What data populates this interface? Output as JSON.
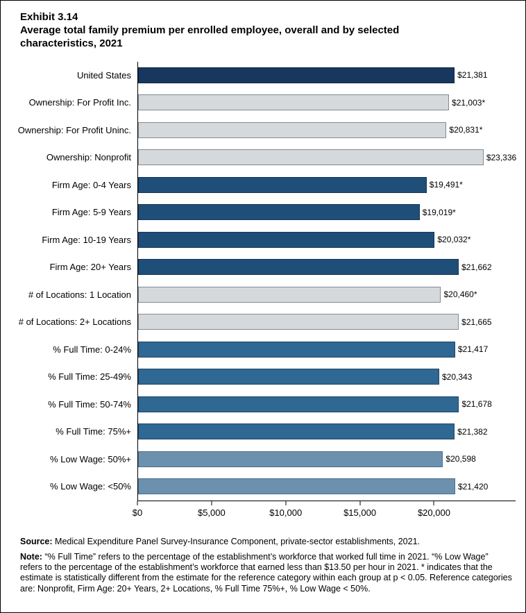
{
  "title_block": {
    "exhibit_number": "Exhibit 3.14",
    "title": "Average total family premium per enrolled employee, overall and by selected characteristics, 2021"
  },
  "footer": {
    "source_label": "Source:",
    "source_text": "Medical Expenditure Panel Survey-Insurance Component, private-sector establishments, 2021.",
    "note_label": "Note:",
    "note_text": "“% Full Time” refers to the percentage of the establishment’s workforce that worked full time in 2021. “% Low Wage” refers to the percentage of the establishment’s workforce that earned less than $13.50 per hour in 2021. * indicates that the estimate is statistically different from the estimate for the reference category within each group at p < 0.05. Reference categories are: Nonprofit, Firm Age: 20+ Years, 2+ Locations, % Full Time 75%+, % Low Wage < 50%."
  },
  "chart_data": {
    "type": "bar",
    "orientation": "horizontal",
    "title": "Average total family premium per enrolled employee, overall and by selected characteristics, 2021",
    "exhibit": "Exhibit 3.14",
    "xlabel": "",
    "ylabel": "",
    "axis_min": 0,
    "axis_max": 25500,
    "grid": false,
    "legend": false,
    "ticks": [
      {
        "value": 0,
        "label": "$0"
      },
      {
        "value": 5000,
        "label": "$5,000"
      },
      {
        "value": 10000,
        "label": "$10,000"
      },
      {
        "value": 15000,
        "label": "$15,000"
      },
      {
        "value": 20000,
        "label": "$20,000"
      }
    ],
    "items": [
      {
        "category": "United States",
        "value": 21381,
        "label": "$21,381",
        "group": "overall"
      },
      {
        "category": "Ownership: For Profit Inc.",
        "value": 21003,
        "label": "$21,003*",
        "group": "ownership"
      },
      {
        "category": "Ownership: For Profit Uninc.",
        "value": 20831,
        "label": "$20,831*",
        "group": "ownership"
      },
      {
        "category": "Ownership: Nonprofit",
        "value": 23336,
        "label": "$23,336",
        "group": "ownership"
      },
      {
        "category": "Firm Age: 0-4 Years",
        "value": 19491,
        "label": "$19,491*",
        "group": "firm_age"
      },
      {
        "category": "Firm Age: 5-9 Years",
        "value": 19019,
        "label": "$19,019*",
        "group": "firm_age"
      },
      {
        "category": "Firm Age: 10-19 Years",
        "value": 20032,
        "label": "$20,032*",
        "group": "firm_age"
      },
      {
        "category": "Firm Age: 20+ Years",
        "value": 21662,
        "label": "$21,662",
        "group": "firm_age"
      },
      {
        "category": "# of Locations: 1 Location",
        "value": 20460,
        "label": "$20,460*",
        "group": "locations"
      },
      {
        "category": "# of Locations: 2+ Locations",
        "value": 21665,
        "label": "$21,665",
        "group": "locations"
      },
      {
        "category": "% Full Time: 0-24%",
        "value": 21417,
        "label": "$21,417",
        "group": "full_time"
      },
      {
        "category": "% Full Time: 25-49%",
        "value": 20343,
        "label": "$20,343",
        "group": "full_time"
      },
      {
        "category": "% Full Time: 50-74%",
        "value": 21678,
        "label": "$21,678",
        "group": "full_time"
      },
      {
        "category": "% Full Time: 75%+",
        "value": 21382,
        "label": "$21,382",
        "group": "full_time"
      },
      {
        "category": "% Low Wage: 50%+",
        "value": 20598,
        "label": "$20,598",
        "group": "low_wage"
      },
      {
        "category": "% Low Wage: <50%",
        "value": 21420,
        "label": "$21,420",
        "group": "low_wage"
      }
    ],
    "group_colors": {
      "overall": {
        "fill": "#17375E",
        "border": "#10263F"
      },
      "ownership": {
        "fill": "#D6D9DB",
        "border": "#7F8A93"
      },
      "firm_age": {
        "fill": "#1F4E79",
        "border": "#153553"
      },
      "locations": {
        "fill": "#D6D9DB",
        "border": "#7F8A93"
      },
      "full_time": {
        "fill": "#2E6893",
        "border": "#1F4563"
      },
      "low_wage": {
        "fill": "#6C91AE",
        "border": "#4C6F8C"
      }
    }
  }
}
